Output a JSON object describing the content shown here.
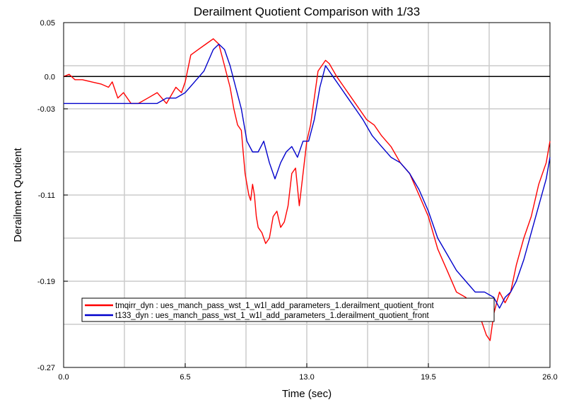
{
  "chart_data": {
    "type": "line",
    "title": "Derailment Quotient Comparison with 1/33",
    "xlabel": "Time (sec)",
    "ylabel": "Derailment Quotient",
    "xlim": [
      0,
      26
    ],
    "ylim": [
      -0.27,
      0.05
    ],
    "xticks": [
      {
        "value": 0,
        "label": "0.0"
      },
      {
        "value": 6.5,
        "label": "6.5"
      },
      {
        "value": 13,
        "label": "13.0"
      },
      {
        "value": 19.5,
        "label": "19.5"
      },
      {
        "value": 26,
        "label": "26.0"
      }
    ],
    "yticks": [
      {
        "value": 0.05,
        "label": "0.05"
      },
      {
        "value": 0.0,
        "label": "0.0"
      },
      {
        "value": -0.03,
        "label": "-0.03"
      },
      {
        "value": -0.11,
        "label": "-0.11"
      },
      {
        "value": -0.19,
        "label": "-0.19"
      },
      {
        "value": -0.27,
        "label": "-0.27"
      }
    ],
    "grid": true,
    "legend_position": "bottom-left",
    "series": [
      {
        "name": "tmqirr_dyn : ues_manch_pass_wst_1_w1l_add_parameters_1.derailment_quotient_front",
        "color": "#ff0000",
        "x": [
          0,
          0.3,
          0.6,
          1.0,
          1.5,
          2.0,
          2.4,
          2.6,
          2.9,
          3.2,
          3.6,
          4.0,
          4.5,
          5.0,
          5.5,
          6.0,
          6.3,
          6.5,
          6.8,
          7.2,
          7.6,
          8.0,
          8.3,
          8.6,
          8.9,
          9.1,
          9.3,
          9.5,
          9.6,
          9.7,
          9.8,
          9.9,
          10.0,
          10.1,
          10.2,
          10.3,
          10.4,
          10.6,
          10.8,
          11.0,
          11.2,
          11.4,
          11.6,
          11.8,
          12.0,
          12.2,
          12.4,
          12.6,
          12.8,
          13.0,
          13.2,
          13.4,
          13.6,
          13.8,
          14.0,
          14.2,
          14.6,
          15.0,
          15.4,
          15.8,
          16.2,
          16.6,
          17.0,
          17.5,
          18.0,
          18.5,
          19.0,
          19.5,
          20.0,
          20.5,
          21.0,
          21.5,
          22.0,
          22.3,
          22.6,
          22.8,
          23.0,
          23.3,
          23.6,
          23.9,
          24.2,
          24.6,
          25.0,
          25.4,
          25.8,
          26.0
        ],
        "y": [
          0.0,
          0.002,
          -0.003,
          -0.003,
          -0.005,
          -0.007,
          -0.01,
          -0.005,
          -0.02,
          -0.015,
          -0.025,
          -0.025,
          -0.02,
          -0.015,
          -0.025,
          -0.01,
          -0.015,
          -0.005,
          0.02,
          0.025,
          0.03,
          0.035,
          0.03,
          0.01,
          -0.01,
          -0.03,
          -0.045,
          -0.05,
          -0.07,
          -0.09,
          -0.1,
          -0.11,
          -0.115,
          -0.1,
          -0.11,
          -0.13,
          -0.14,
          -0.145,
          -0.155,
          -0.15,
          -0.13,
          -0.125,
          -0.14,
          -0.135,
          -0.12,
          -0.09,
          -0.085,
          -0.12,
          -0.09,
          -0.06,
          -0.045,
          -0.02,
          0.005,
          0.01,
          0.015,
          0.012,
          0.0,
          -0.01,
          -0.02,
          -0.03,
          -0.04,
          -0.045,
          -0.055,
          -0.065,
          -0.08,
          -0.09,
          -0.11,
          -0.13,
          -0.16,
          -0.18,
          -0.2,
          -0.205,
          -0.215,
          -0.225,
          -0.24,
          -0.245,
          -0.22,
          -0.2,
          -0.21,
          -0.2,
          -0.175,
          -0.15,
          -0.13,
          -0.1,
          -0.08,
          -0.06
        ]
      },
      {
        "name": "t133_dyn : ues_manch_pass_wst_1_w1l_add_parameters_1.derailment_quotient_front",
        "color": "#0000cc",
        "x": [
          0,
          0.5,
          1.0,
          1.5,
          2.0,
          2.5,
          3.0,
          3.5,
          4.0,
          4.5,
          5.0,
          5.5,
          6.0,
          6.5,
          7.0,
          7.5,
          8.0,
          8.3,
          8.6,
          8.9,
          9.2,
          9.5,
          9.8,
          10.1,
          10.4,
          10.7,
          11.0,
          11.3,
          11.6,
          11.9,
          12.2,
          12.5,
          12.8,
          13.1,
          13.4,
          13.7,
          14.0,
          14.4,
          14.8,
          15.2,
          15.6,
          16.0,
          16.5,
          17.0,
          17.5,
          18.0,
          18.5,
          19.0,
          19.5,
          20.0,
          20.5,
          21.0,
          21.5,
          22.0,
          22.5,
          23.0,
          23.3,
          23.6,
          23.9,
          24.2,
          24.6,
          25.0,
          25.4,
          25.8,
          26.0
        ],
        "y": [
          -0.025,
          -0.025,
          -0.025,
          -0.025,
          -0.025,
          -0.025,
          -0.025,
          -0.025,
          -0.025,
          -0.025,
          -0.025,
          -0.02,
          -0.02,
          -0.015,
          -0.005,
          0.005,
          0.025,
          0.03,
          0.025,
          0.01,
          -0.01,
          -0.03,
          -0.06,
          -0.07,
          -0.07,
          -0.06,
          -0.08,
          -0.095,
          -0.08,
          -0.07,
          -0.065,
          -0.075,
          -0.06,
          -0.06,
          -0.04,
          -0.01,
          0.01,
          0.0,
          -0.01,
          -0.02,
          -0.03,
          -0.04,
          -0.055,
          -0.065,
          -0.075,
          -0.08,
          -0.09,
          -0.105,
          -0.125,
          -0.15,
          -0.165,
          -0.18,
          -0.19,
          -0.2,
          -0.2,
          -0.205,
          -0.215,
          -0.205,
          -0.2,
          -0.19,
          -0.17,
          -0.145,
          -0.12,
          -0.095,
          -0.075
        ]
      }
    ]
  }
}
